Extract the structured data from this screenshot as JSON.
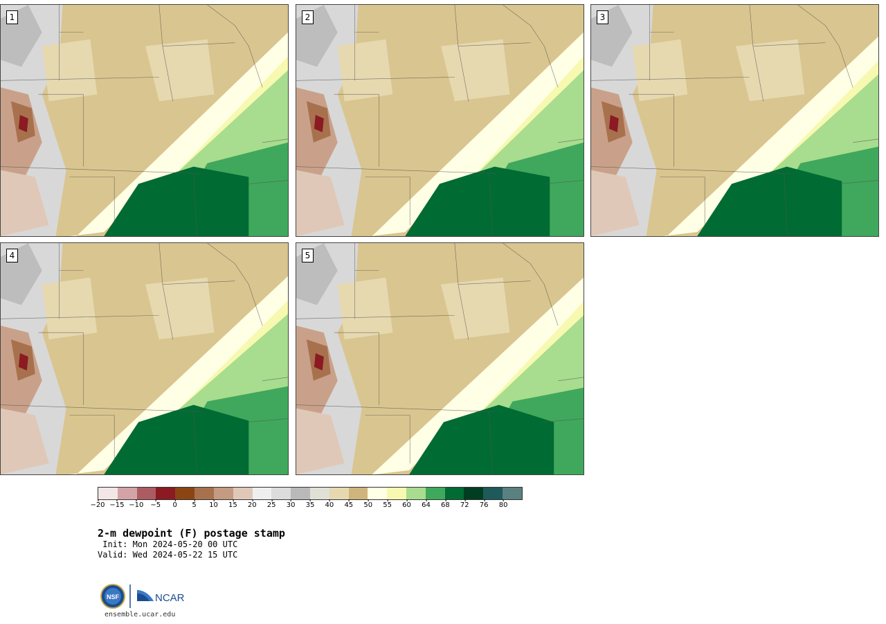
{
  "panels": [
    {
      "label": "1"
    },
    {
      "label": "2"
    },
    {
      "label": "3"
    },
    {
      "label": "4"
    },
    {
      "label": "5"
    }
  ],
  "colorbar": {
    "colors": [
      "#f2e6e6",
      "#d4a3a8",
      "#ad5b63",
      "#8b1a22",
      "#8b4513",
      "#a8714e",
      "#c49a80",
      "#e0c8b8",
      "#efefef",
      "#dcdcdc",
      "#b9b9b9",
      "#e0e0d6",
      "#e6d9b0",
      "#cfb57c",
      "#ffffe6",
      "#f7f9b0",
      "#a8dc8e",
      "#3fa85c",
      "#006b33",
      "#003d21",
      "#1e5a5a",
      "#5a8080"
    ],
    "tick_labels": [
      "−20",
      "−15",
      "−10",
      "−5",
      "0",
      "5",
      "10",
      "15",
      "20",
      "25",
      "30",
      "35",
      "40",
      "45",
      "50",
      "55",
      "60",
      "64",
      "68",
      "72",
      "76",
      "80"
    ]
  },
  "title": "2-m dewpoint (F) postage stamp",
  "init": " Init: Mon 2024-05-20 00 UTC",
  "valid": "Valid: Wed 2024-05-22 15 UTC",
  "url": "ensemble.ucar.edu",
  "logos": {
    "nsf": "NSF",
    "ncar": "NCAR"
  }
}
